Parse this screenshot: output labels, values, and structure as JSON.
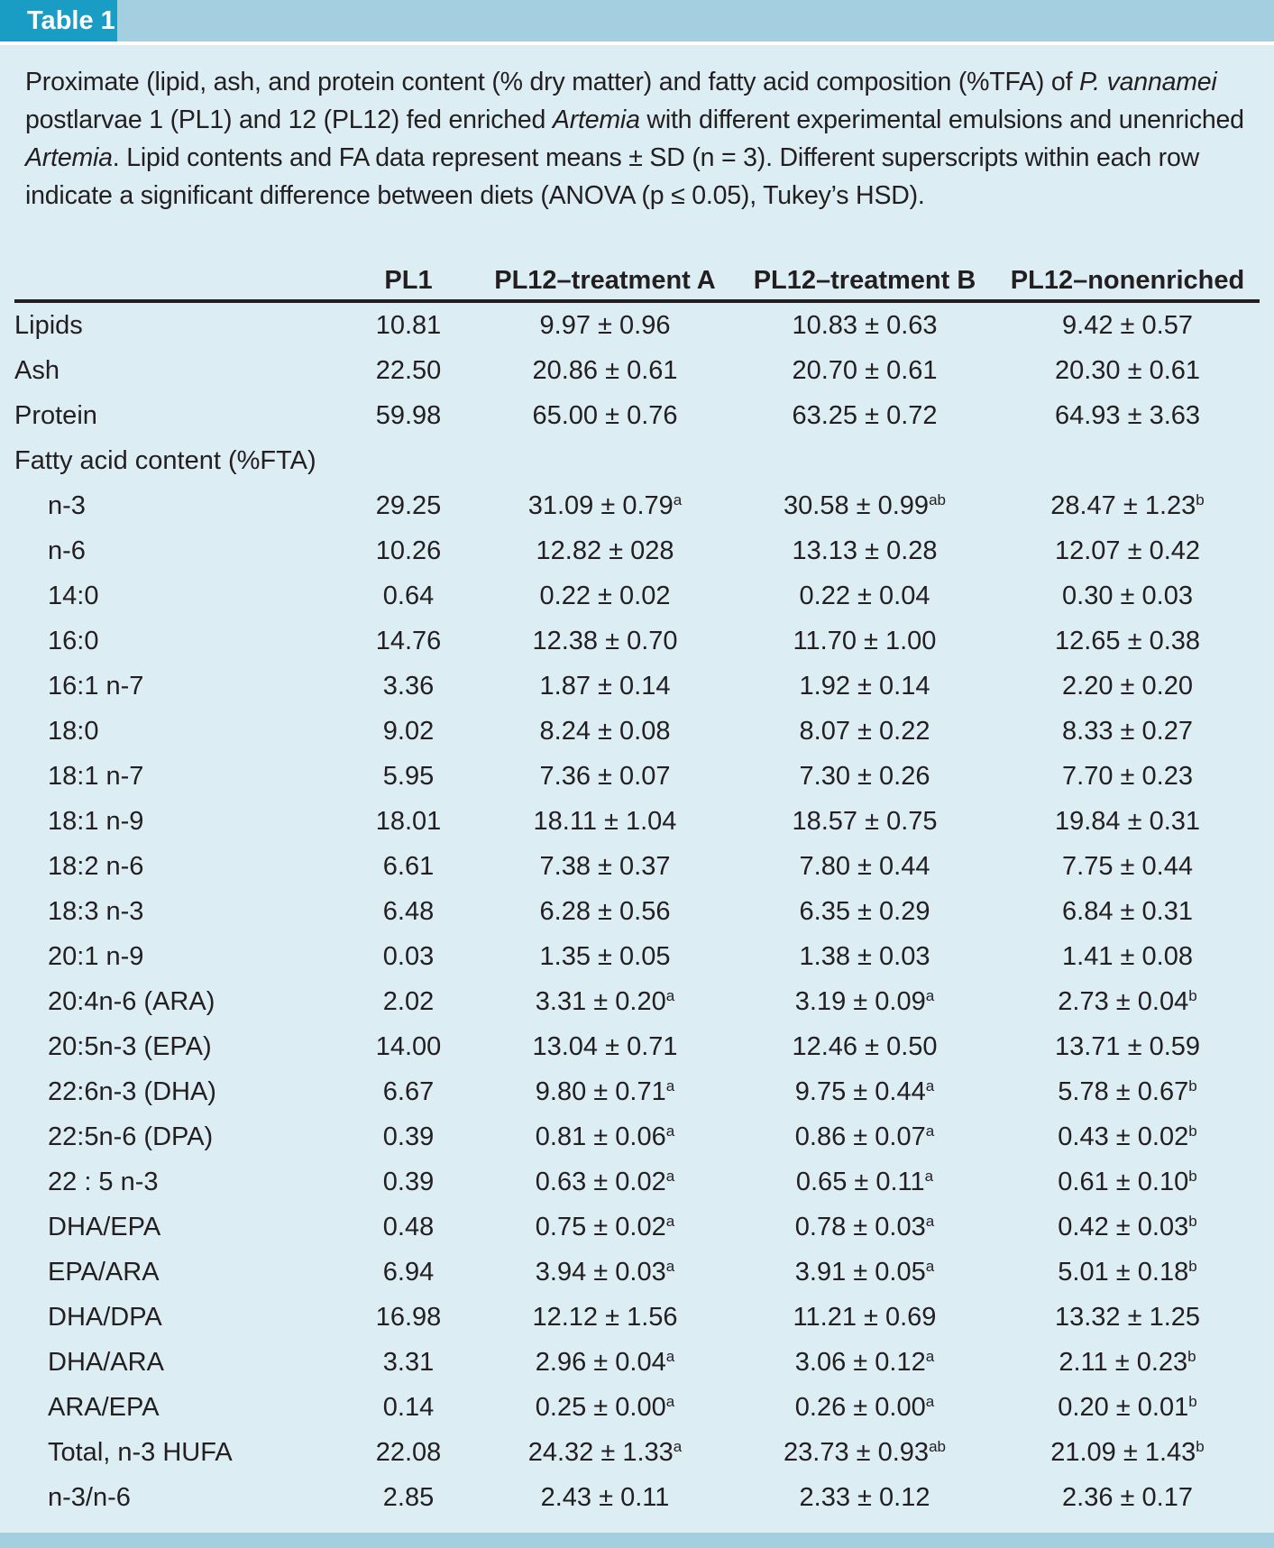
{
  "header": {
    "tag": "Table 1"
  },
  "caption": {
    "p1": "Proximate (lipid, ash, and protein content (% dry matter) and fatty acid composition (%TFA) of ",
    "species": "P. vannamei",
    "p2": " postlarvae 1 (PL1) and 12 (PL12) fed enriched ",
    "artemia1": "Artemia",
    "p3": " with different experimental emulsions and unenriched ",
    "artemia2": "Artemia",
    "p4": ". Lipid contents and FA data represent means ± SD (n = 3). Different superscripts within each row indicate a significant difference between diets (ANOVA (p ≤ 0.05), Tukey’s HSD)."
  },
  "columns": [
    "",
    "PL1",
    "PL12–treatment A",
    "PL12–treatment B",
    "PL12–nonenriched"
  ],
  "rows": [
    {
      "label": "Lipids",
      "indent": false,
      "cells": [
        {
          "v": "10.81"
        },
        {
          "v": "9.97 ± 0.96"
        },
        {
          "v": "10.83 ± 0.63"
        },
        {
          "v": "9.42 ± 0.57"
        }
      ]
    },
    {
      "label": "Ash",
      "indent": false,
      "cells": [
        {
          "v": "22.50"
        },
        {
          "v": "20.86 ± 0.61"
        },
        {
          "v": "20.70 ± 0.61"
        },
        {
          "v": "20.30 ± 0.61"
        }
      ]
    },
    {
      "label": "Protein",
      "indent": false,
      "cells": [
        {
          "v": "59.98"
        },
        {
          "v": "65.00 ± 0.76"
        },
        {
          "v": "63.25 ± 0.72"
        },
        {
          "v": "64.93 ± 3.63"
        }
      ]
    },
    {
      "label": "Fatty acid content (%FTA)",
      "indent": false,
      "cells": [
        {
          "v": ""
        },
        {
          "v": ""
        },
        {
          "v": ""
        },
        {
          "v": ""
        }
      ]
    },
    {
      "label": "n-3",
      "indent": true,
      "cells": [
        {
          "v": "29.25"
        },
        {
          "v": "31.09 ± 0.79",
          "sup": "a"
        },
        {
          "v": "30.58 ± 0.99",
          "sup": "ab"
        },
        {
          "v": "28.47 ± 1.23",
          "sup": "b"
        }
      ]
    },
    {
      "label": "n-6",
      "indent": true,
      "cells": [
        {
          "v": "10.26"
        },
        {
          "v": "12.82 ± 028"
        },
        {
          "v": "13.13 ± 0.28"
        },
        {
          "v": "12.07 ± 0.42"
        }
      ]
    },
    {
      "label": "14:0",
      "indent": true,
      "cells": [
        {
          "v": "0.64"
        },
        {
          "v": "0.22 ± 0.02"
        },
        {
          "v": "0.22 ± 0.04"
        },
        {
          "v": "0.30 ± 0.03"
        }
      ]
    },
    {
      "label": "16:0",
      "indent": true,
      "cells": [
        {
          "v": "14.76"
        },
        {
          "v": "12.38 ± 0.70"
        },
        {
          "v": "11.70 ± 1.00"
        },
        {
          "v": "12.65 ± 0.38"
        }
      ]
    },
    {
      "label": "16:1 n-7",
      "indent": true,
      "cells": [
        {
          "v": "3.36"
        },
        {
          "v": "1.87 ± 0.14"
        },
        {
          "v": "1.92 ± 0.14"
        },
        {
          "v": "2.20 ± 0.20"
        }
      ]
    },
    {
      "label": "18:0",
      "indent": true,
      "cells": [
        {
          "v": "9.02"
        },
        {
          "v": "8.24 ± 0.08"
        },
        {
          "v": "8.07 ± 0.22"
        },
        {
          "v": "8.33 ± 0.27"
        }
      ]
    },
    {
      "label": "18:1 n-7",
      "indent": true,
      "cells": [
        {
          "v": "5.95"
        },
        {
          "v": "7.36 ± 0.07"
        },
        {
          "v": "7.30 ± 0.26"
        },
        {
          "v": "7.70 ± 0.23"
        }
      ]
    },
    {
      "label": "18:1 n-9",
      "indent": true,
      "cells": [
        {
          "v": "18.01"
        },
        {
          "v": "18.11 ± 1.04"
        },
        {
          "v": "18.57 ± 0.75"
        },
        {
          "v": "19.84 ± 0.31"
        }
      ]
    },
    {
      "label": "18:2 n-6",
      "indent": true,
      "cells": [
        {
          "v": "6.61"
        },
        {
          "v": "7.38 ± 0.37"
        },
        {
          "v": "7.80 ± 0.44"
        },
        {
          "v": "7.75 ± 0.44"
        }
      ]
    },
    {
      "label": "18:3 n-3",
      "indent": true,
      "cells": [
        {
          "v": "6.48"
        },
        {
          "v": "6.28 ± 0.56"
        },
        {
          "v": "6.35 ± 0.29"
        },
        {
          "v": "6.84 ± 0.31"
        }
      ]
    },
    {
      "label": "20:1 n-9",
      "indent": true,
      "cells": [
        {
          "v": "0.03"
        },
        {
          "v": "1.35 ± 0.05"
        },
        {
          "v": "1.38 ± 0.03"
        },
        {
          "v": "1.41 ± 0.08"
        }
      ]
    },
    {
      "label": "20:4n-6 (ARA)",
      "indent": true,
      "cells": [
        {
          "v": "2.02"
        },
        {
          "v": "3.31 ± 0.20",
          "sup": "a"
        },
        {
          "v": "3.19 ± 0.09",
          "sup": "a"
        },
        {
          "v": "2.73 ± 0.04",
          "sup": "b"
        }
      ]
    },
    {
      "label": "20:5n-3 (EPA)",
      "indent": true,
      "cells": [
        {
          "v": "14.00"
        },
        {
          "v": "13.04 ± 0.71"
        },
        {
          "v": "12.46 ± 0.50"
        },
        {
          "v": "13.71 ± 0.59"
        }
      ]
    },
    {
      "label": "22:6n-3 (DHA)",
      "indent": true,
      "cells": [
        {
          "v": "6.67"
        },
        {
          "v": "9.80 ± 0.71",
          "sup": "a"
        },
        {
          "v": "9.75 ± 0.44",
          "sup": "a"
        },
        {
          "v": "5.78 ± 0.67",
          "sup": "b"
        }
      ]
    },
    {
      "label": "22:5n-6 (DPA)",
      "indent": true,
      "cells": [
        {
          "v": "0.39"
        },
        {
          "v": "0.81 ± 0.06",
          "sup": "a"
        },
        {
          "v": "0.86 ± 0.07",
          "sup": "a"
        },
        {
          "v": "0.43 ± 0.02",
          "sup": "b"
        }
      ]
    },
    {
      "label": "22 : 5 n-3",
      "indent": true,
      "cells": [
        {
          "v": "0.39"
        },
        {
          "v": "0.63 ± 0.02",
          "sup": "a"
        },
        {
          "v": "0.65 ± 0.11",
          "sup": "a"
        },
        {
          "v": "0.61 ± 0.10",
          "sup": "b"
        }
      ]
    },
    {
      "label": "DHA/EPA",
      "indent": true,
      "cells": [
        {
          "v": "0.48"
        },
        {
          "v": "0.75 ± 0.02",
          "sup": "a"
        },
        {
          "v": "0.78 ± 0.03",
          "sup": "a"
        },
        {
          "v": "0.42 ± 0.03",
          "sup": "b"
        }
      ]
    },
    {
      "label": "EPA/ARA",
      "indent": true,
      "cells": [
        {
          "v": "6.94"
        },
        {
          "v": "3.94 ± 0.03",
          "sup": "a"
        },
        {
          "v": "3.91 ± 0.05",
          "sup": "a"
        },
        {
          "v": "5.01 ± 0.18",
          "sup": "b"
        }
      ]
    },
    {
      "label": "DHA/DPA",
      "indent": true,
      "cells": [
        {
          "v": "16.98"
        },
        {
          "v": "12.12 ± 1.56"
        },
        {
          "v": "11.21 ± 0.69"
        },
        {
          "v": "13.32 ± 1.25"
        }
      ]
    },
    {
      "label": "DHA/ARA",
      "indent": true,
      "cells": [
        {
          "v": "3.31"
        },
        {
          "v": "2.96 ± 0.04",
          "sup": "a"
        },
        {
          "v": "3.06 ± 0.12",
          "sup": "a"
        },
        {
          "v": "2.11 ± 0.23",
          "sup": "b"
        }
      ]
    },
    {
      "label": "ARA/EPA",
      "indent": true,
      "cells": [
        {
          "v": "0.14"
        },
        {
          "v": "0.25 ± 0.00",
          "sup": "a"
        },
        {
          "v": "0.26 ± 0.00",
          "sup": "a"
        },
        {
          "v": "0.20 ± 0.01",
          "sup": "b"
        }
      ]
    },
    {
      "label": "Total, n-3 HUFA",
      "indent": true,
      "cells": [
        {
          "v": "22.08"
        },
        {
          "v": "24.32 ± 1.33",
          "sup": "a"
        },
        {
          "v": "23.73 ± 0.93",
          "sup": "ab"
        },
        {
          "v": "21.09 ± 1.43",
          "sup": "b"
        }
      ]
    },
    {
      "label": "n-3/n-6",
      "indent": true,
      "cells": [
        {
          "v": "2.85"
        },
        {
          "v": "2.43 ± 0.11"
        },
        {
          "v": "2.33 ± 0.12"
        },
        {
          "v": "2.36 ± 0.17"
        }
      ]
    }
  ]
}
